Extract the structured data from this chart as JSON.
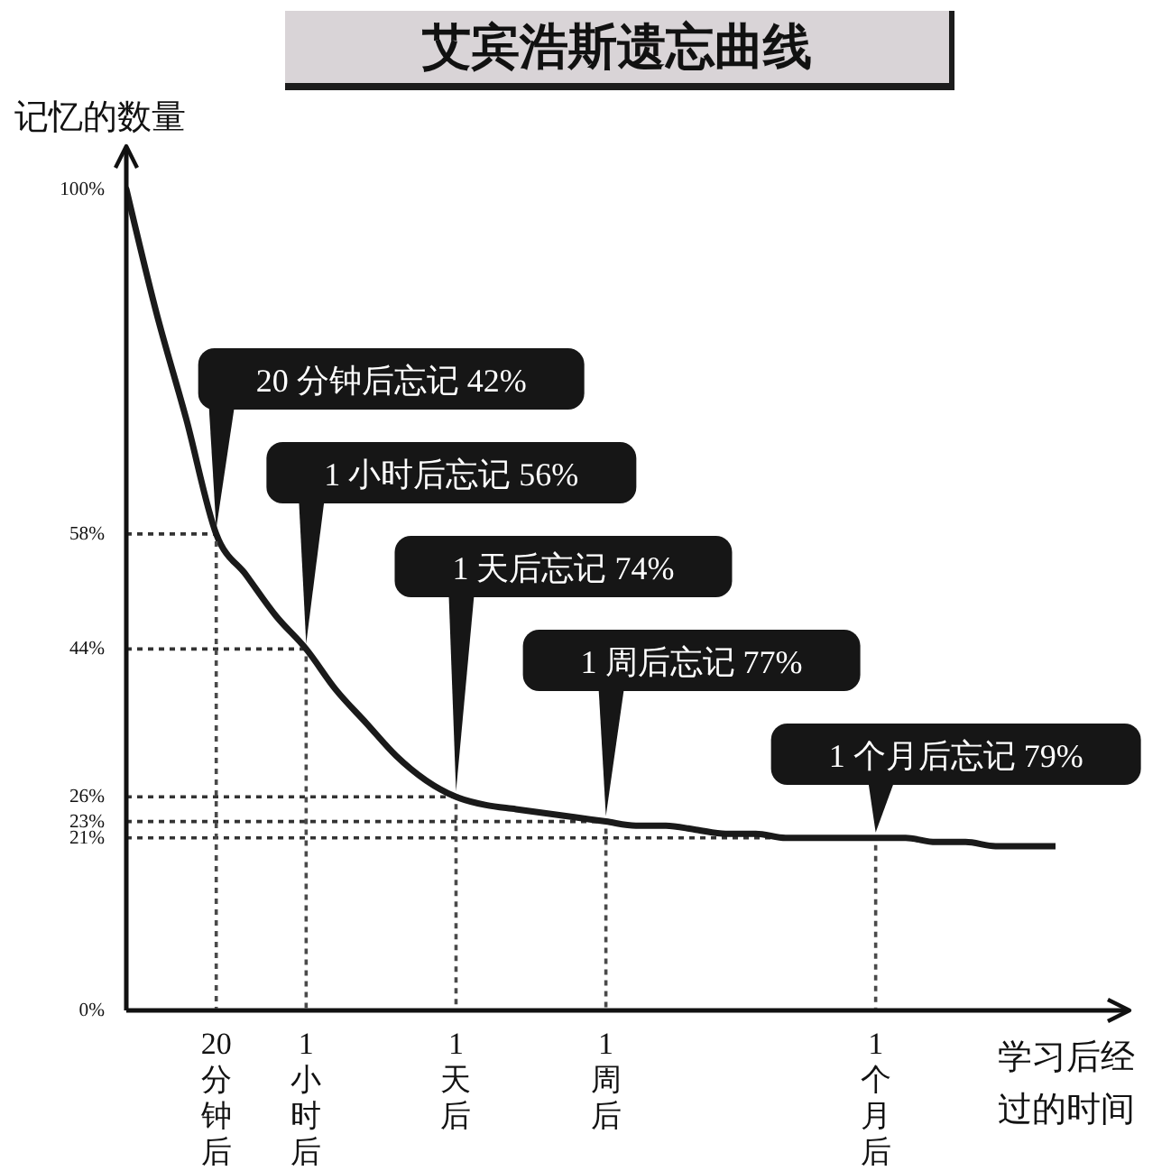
{
  "chart_data": {
    "type": "line",
    "title": "艾宾浩斯遗忘曲线",
    "ylabel": "记忆的数量",
    "xlabel": "学习后经过的时间",
    "categories": [
      null,
      null,
      null,
      "20分钟后",
      null,
      null,
      "1小时后",
      null,
      null,
      null,
      null,
      "1天后",
      null,
      null,
      null,
      null,
      "1周后",
      null,
      null,
      null,
      null,
      null,
      null,
      null,
      null,
      "1个月后",
      null,
      null,
      null,
      null,
      null,
      null
    ],
    "values": [
      100,
      85,
      72,
      58,
      53,
      48,
      44,
      39,
      35,
      31,
      28,
      26,
      25,
      24.5,
      24,
      23.5,
      23,
      22.5,
      22.5,
      22,
      21.5,
      21.5,
      21,
      21,
      21,
      21,
      21,
      20.5,
      20.5,
      20,
      20,
      20
    ],
    "color": "#1a1a1a",
    "ylim": [
      0,
      105
    ],
    "yticks": [
      {
        "value": 0,
        "label": "0%"
      },
      {
        "value": 21,
        "label": "21%"
      },
      {
        "value": 23,
        "label": "23%"
      },
      {
        "value": 26,
        "label": "26%"
      },
      {
        "value": 44,
        "label": "44%"
      },
      {
        "value": 58,
        "label": "58%"
      },
      {
        "value": 100,
        "label": "100%"
      }
    ],
    "ref_lines": [
      {
        "axis": "y",
        "value": 58,
        "color": "#333333",
        "line_style": "dotted"
      },
      {
        "axis": "y",
        "value": 44,
        "color": "#333333",
        "line_style": "dotted"
      },
      {
        "axis": "y",
        "value": 26,
        "color": "#333333",
        "line_style": "dotted"
      },
      {
        "axis": "y",
        "value": 23,
        "color": "#333333",
        "line_style": "dotted"
      },
      {
        "axis": "y",
        "value": 21,
        "color": "#333333",
        "line_style": "dotted"
      }
    ],
    "annotations": [
      {
        "text": "20 分钟后忘记 42%",
        "x": "20分钟后",
        "y": 58
      },
      {
        "text": "1 小时后忘记 56%",
        "x": "1小时后",
        "y": 44
      },
      {
        "text": "1 天后忘记 74%",
        "x": "1天后",
        "y": 26
      },
      {
        "text": "1 周后忘记 77%",
        "x": "1周后",
        "y": 23
      },
      {
        "text": "1 个月后忘记 79%",
        "x": "1个月后",
        "y": 21
      }
    ]
  }
}
